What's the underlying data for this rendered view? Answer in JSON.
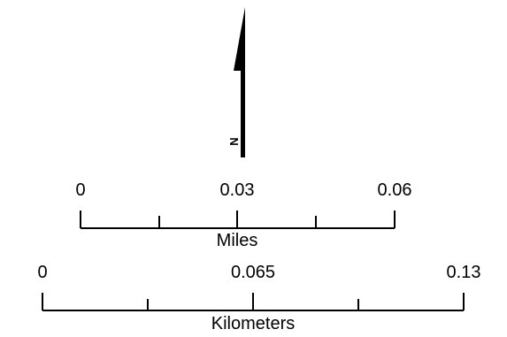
{
  "north_arrow": {
    "letter": "N"
  },
  "scale_bars": [
    {
      "unit": "Miles",
      "tick_labels": [
        "0",
        "0.03",
        "0.06"
      ]
    },
    {
      "unit": "Kilometers",
      "tick_labels": [
        "0",
        "0.065",
        "0.13"
      ]
    }
  ]
}
